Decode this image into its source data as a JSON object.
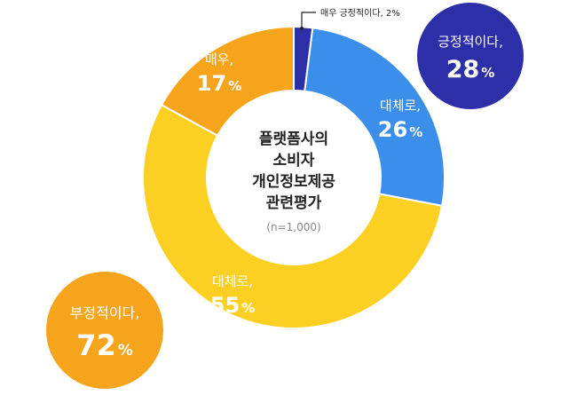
{
  "chart_data": {
    "type": "pie",
    "title_lines": [
      "플랫폼사의",
      "소비자",
      "개인정보제공",
      "관련평가"
    ],
    "note": "(n=1,000)",
    "categories": [
      "매우 긍정적이다",
      "대체로",
      "대체로",
      "매우,"
    ],
    "values": [
      2,
      26,
      55,
      17
    ],
    "colors": [
      "#2d2fa8",
      "#3b8fea",
      "#fcd023",
      "#f7a41d"
    ],
    "slices": [
      {
        "name": "",
        "value": 2,
        "value_text": "",
        "pct": "",
        "color": "#2d2fa8",
        "callout": "매우 긍정적이다, 2%"
      },
      {
        "name": "대체로,",
        "value": 26,
        "value_text": "26",
        "pct": "%",
        "color": "#3b8fea"
      },
      {
        "name": "대체로,",
        "value": 55,
        "value_text": "55",
        "pct": "%",
        "color": "#fcd023"
      },
      {
        "name": "매우,",
        "value": 17,
        "value_text": "17",
        "pct": "%",
        "color": "#f7a41d"
      }
    ],
    "summary": [
      {
        "name": "긍정적이다,",
        "value": 28,
        "value_text": "28",
        "pct": "%",
        "color": "#2d2fa8"
      },
      {
        "name": "부정적이다,",
        "value": 72,
        "value_text": "72",
        "pct": "%",
        "color": "#f7a41d"
      }
    ]
  }
}
